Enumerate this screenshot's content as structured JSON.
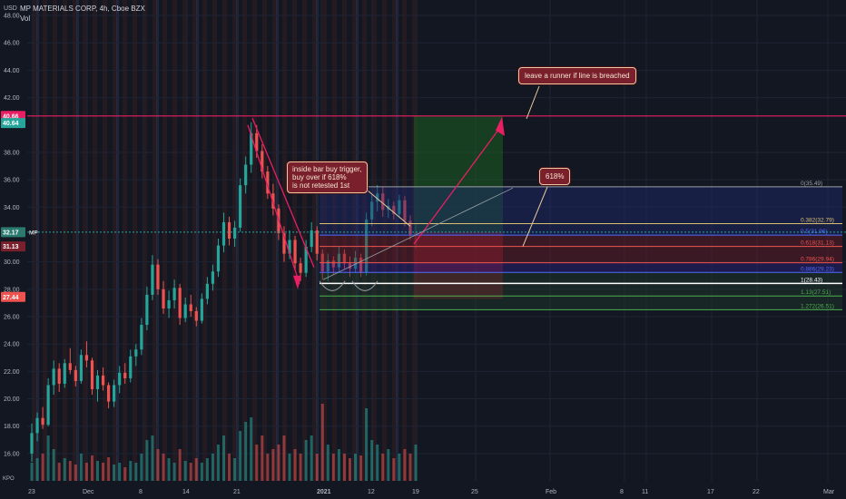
{
  "header": {
    "title": "MP MATERIALS CORP, 4h, Cboe BZX",
    "vol_label": "Vol"
  },
  "currency_label": "USD",
  "notes": {
    "trigger": [
      "inside bar buy trigger,",
      "buy over if 618%",
      "is not retested 1st"
    ],
    "runner": "leave a runner if line is  breached",
    "fib618": "618%"
  },
  "price_tags": {
    "resistance": "40.66",
    "upper": "40.64",
    "current": "32.17",
    "current_label": "MP",
    "stop": "31.13",
    "lower": "27.44",
    "bottom_left": "KPO"
  },
  "colors": {
    "background": "#131722",
    "up": "#26a69a",
    "down": "#ef5350",
    "resistance": "#e91e63",
    "target_zone": "#1b5e20",
    "stop_zone": "#8b1a2b"
  },
  "chart_data": {
    "type": "candlestick",
    "ylim": [
      15,
      48.6
    ],
    "y_ticks": [
      "48.00",
      "46.00",
      "44.00",
      "42.00",
      "38.00",
      "36.00",
      "34.00",
      "30.00",
      "28.00",
      "26.00",
      "24.00",
      "22.00",
      "20.00",
      "18.00",
      "16.00"
    ],
    "x_ticks": [
      "23",
      "Dec",
      "8",
      "14",
      "21",
      "2021",
      "12",
      "19",
      "25",
      "Feb",
      "8",
      "11",
      "17",
      "22",
      "Mar"
    ],
    "resistance_line": 40.66,
    "fib_levels": [
      {
        "label": "0(35.49)",
        "value": 35.49
      },
      {
        "label": "0.382(32.79)",
        "value": 32.79
      },
      {
        "label": "0.5(31.96)",
        "value": 31.96
      },
      {
        "label": "0.618(31.13)",
        "value": 31.13
      },
      {
        "label": "0.786(29.94)",
        "value": 29.94
      },
      {
        "label": "0.886(29.23)",
        "value": 29.23
      },
      {
        "label": "1(28.43)",
        "value": 28.43
      },
      {
        "label": "1.13(27.51)",
        "value": 27.51
      },
      {
        "label": "1.272(26.51)",
        "value": 26.51
      }
    ],
    "candles": [
      [
        16.0,
        18.2,
        15.4,
        17.5
      ],
      [
        17.5,
        19.0,
        16.9,
        18.6
      ],
      [
        18.6,
        19.4,
        17.8,
        18.1
      ],
      [
        18.1,
        21.5,
        18.0,
        21.0
      ],
      [
        21.0,
        22.8,
        20.3,
        22.2
      ],
      [
        22.2,
        22.6,
        20.5,
        21.1
      ],
      [
        21.1,
        22.9,
        20.8,
        22.6
      ],
      [
        22.6,
        23.7,
        21.8,
        22.1
      ],
      [
        22.1,
        22.4,
        20.9,
        21.3
      ],
      [
        21.3,
        23.6,
        21.1,
        23.2
      ],
      [
        23.2,
        24.2,
        22.3,
        22.8
      ],
      [
        22.8,
        23.0,
        20.3,
        20.7
      ],
      [
        20.7,
        22.1,
        19.8,
        21.7
      ],
      [
        21.7,
        22.3,
        20.6,
        21.0
      ],
      [
        21.0,
        21.2,
        19.3,
        19.8
      ],
      [
        19.8,
        21.4,
        19.4,
        21.0
      ],
      [
        21.0,
        22.4,
        20.4,
        21.9
      ],
      [
        21.9,
        22.6,
        21.1,
        21.5
      ],
      [
        21.5,
        23.6,
        21.2,
        23.1
      ],
      [
        23.1,
        24.0,
        22.4,
        23.6
      ],
      [
        23.6,
        25.9,
        23.2,
        25.4
      ],
      [
        25.4,
        28.2,
        25.0,
        27.6
      ],
      [
        27.6,
        30.5,
        27.2,
        29.8
      ],
      [
        29.8,
        30.2,
        27.6,
        28.0
      ],
      [
        28.0,
        28.6,
        26.2,
        26.6
      ],
      [
        26.6,
        27.9,
        25.9,
        27.2
      ],
      [
        27.2,
        28.7,
        26.6,
        28.1
      ],
      [
        28.1,
        28.4,
        25.4,
        25.9
      ],
      [
        25.9,
        27.4,
        25.6,
        26.9
      ],
      [
        26.9,
        27.6,
        26.0,
        26.4
      ],
      [
        26.4,
        26.7,
        25.3,
        25.7
      ],
      [
        25.7,
        27.7,
        25.5,
        27.3
      ],
      [
        27.3,
        28.9,
        26.9,
        28.4
      ],
      [
        28.4,
        29.8,
        27.9,
        29.3
      ],
      [
        29.3,
        31.7,
        28.9,
        31.2
      ],
      [
        31.2,
        33.6,
        30.7,
        32.9
      ],
      [
        32.9,
        33.3,
        31.2,
        31.7
      ],
      [
        31.7,
        33.0,
        31.1,
        32.5
      ],
      [
        32.5,
        36.1,
        32.2,
        35.6
      ],
      [
        35.6,
        37.7,
        35.0,
        37.1
      ],
      [
        37.1,
        40.2,
        36.5,
        39.4
      ],
      [
        39.4,
        40.0,
        37.6,
        38.1
      ],
      [
        38.1,
        38.6,
        36.1,
        36.6
      ],
      [
        36.6,
        37.0,
        34.6,
        35.0
      ],
      [
        35.0,
        35.7,
        33.4,
        33.9
      ],
      [
        33.9,
        34.2,
        31.6,
        32.1
      ],
      [
        32.1,
        32.6,
        30.0,
        30.6
      ],
      [
        30.6,
        32.3,
        30.2,
        31.6
      ],
      [
        31.6,
        31.9,
        29.4,
        29.9
      ],
      [
        29.9,
        30.3,
        28.6,
        29.2
      ],
      [
        29.2,
        31.6,
        28.9,
        31.1
      ],
      [
        31.1,
        32.9,
        30.7,
        32.3
      ],
      [
        32.3,
        32.6,
        30.1,
        30.6
      ],
      [
        30.6,
        30.9,
        28.7,
        29.3
      ],
      [
        29.3,
        30.6,
        28.6,
        30.1
      ],
      [
        30.1,
        30.4,
        29.1,
        29.6
      ],
      [
        29.6,
        31.1,
        29.3,
        30.6
      ],
      [
        30.6,
        30.9,
        29.5,
        29.9
      ],
      [
        29.9,
        30.4,
        28.9,
        29.5
      ],
      [
        29.5,
        30.8,
        29.2,
        30.3
      ],
      [
        30.3,
        30.6,
        28.9,
        29.2
      ],
      [
        29.2,
        33.6,
        29.0,
        33.1
      ],
      [
        33.1,
        34.9,
        32.6,
        34.4
      ],
      [
        34.4,
        35.6,
        33.7,
        35.0
      ],
      [
        35.0,
        35.5,
        33.3,
        33.8
      ],
      [
        33.8,
        34.6,
        33.2,
        34.1
      ],
      [
        34.1,
        34.4,
        33.1,
        33.5
      ],
      [
        33.5,
        34.9,
        33.2,
        34.5
      ],
      [
        34.5,
        34.8,
        32.6,
        33.0
      ],
      [
        33.0,
        33.4,
        31.6,
        32.0
      ],
      [
        32.0,
        32.8,
        31.0,
        32.17
      ]
    ],
    "volume_max": 1,
    "volume": [
      0.2,
      0.25,
      0.3,
      0.5,
      0.35,
      0.2,
      0.25,
      0.22,
      0.18,
      0.3,
      0.2,
      0.28,
      0.22,
      0.2,
      0.26,
      0.18,
      0.2,
      0.15,
      0.22,
      0.2,
      0.3,
      0.45,
      0.5,
      0.35,
      0.3,
      0.25,
      0.2,
      0.35,
      0.22,
      0.2,
      0.25,
      0.2,
      0.25,
      0.3,
      0.4,
      0.5,
      0.3,
      0.25,
      0.55,
      0.65,
      0.7,
      0.4,
      0.5,
      0.3,
      0.35,
      0.4,
      0.5,
      0.3,
      0.35,
      0.3,
      0.45,
      0.5,
      0.3,
      0.85,
      0.4,
      0.3,
      0.35,
      0.3,
      0.25,
      0.3,
      0.28,
      0.8,
      0.45,
      0.4,
      0.3,
      0.35,
      0.25,
      0.3,
      0.35,
      0.3,
      0.4
    ]
  }
}
